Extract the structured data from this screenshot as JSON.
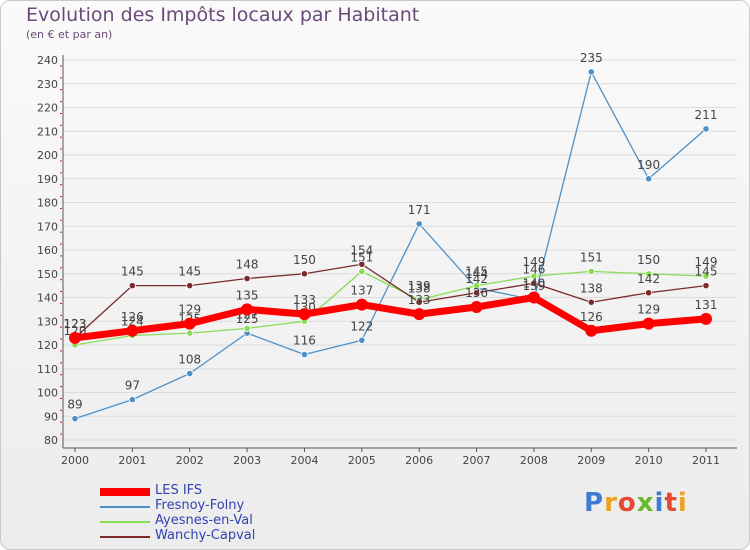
{
  "chart_data": {
    "type": "line",
    "title": "Evolution des Impôts locaux par Habitant",
    "subtitle": "(en € et par an)",
    "xlabel": "",
    "ylabel": "",
    "ylim": [
      80,
      240
    ],
    "ytick_step": 10,
    "grid": "horizontal",
    "legend_position": "bottom-left",
    "categories": [
      "2000",
      "2001",
      "2002",
      "2003",
      "2004",
      "2005",
      "2006",
      "2007",
      "2008",
      "2009",
      "2010",
      "2011"
    ],
    "series": [
      {
        "name": "LES IFS",
        "color": "#ff0000",
        "values": [
          123,
          126,
          129,
          135,
          133,
          137,
          133,
          136,
          140,
          126,
          129,
          131
        ]
      },
      {
        "name": "Fresnoy-Folny",
        "color": "#4d90c8",
        "values": [
          89,
          97,
          108,
          125,
          116,
          122,
          171,
          144,
          139,
          235,
          190,
          211
        ]
      },
      {
        "name": "Ayesnes-en-Val",
        "color": "#88dd55",
        "values": [
          120,
          124,
          125,
          127,
          130,
          151,
          139,
          145,
          149,
          151,
          150,
          149
        ]
      },
      {
        "name": "Wanchy-Capval",
        "color": "#7a2a2a",
        "values": [
          123,
          145,
          145,
          148,
          150,
          154,
          138,
          142,
          146,
          138,
          142,
          145
        ]
      }
    ]
  },
  "logo": {
    "letters": [
      "P",
      "r",
      "o",
      "x",
      "i",
      "t",
      "i"
    ]
  }
}
